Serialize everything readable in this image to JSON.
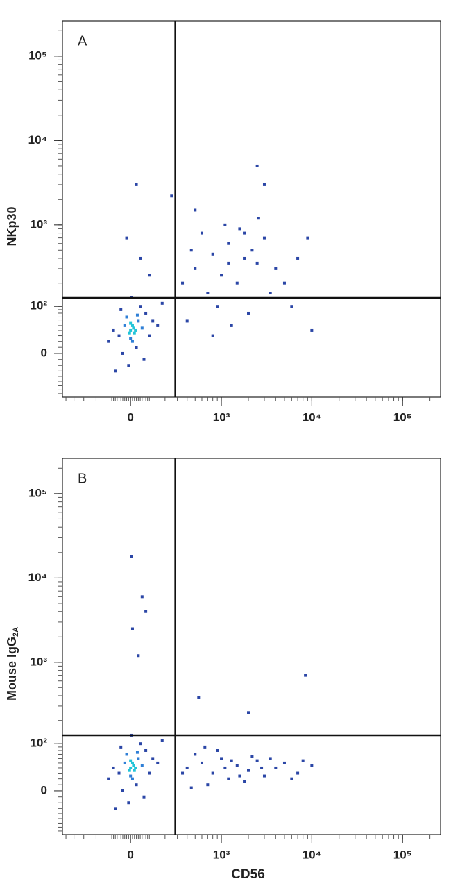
{
  "chart_data": [
    {
      "type": "scatter",
      "annotation": "A",
      "ylabel": "NKp30",
      "color": "#2b46a6",
      "x": [
        0,
        20,
        -30,
        40,
        10,
        -60,
        60,
        -20,
        30,
        80,
        -90,
        100,
        -10,
        50,
        -40,
        120,
        0,
        15,
        -5,
        25,
        -120,
        150,
        5,
        -50,
        70,
        180,
        -80,
        35,
        0,
        10,
        500,
        800,
        1200,
        1800,
        2500,
        3000,
        1000,
        700,
        1500,
        2200,
        4000,
        600,
        900,
        1300,
        2000,
        3500,
        5000,
        7000,
        9000,
        400,
        450,
        1100,
        1600,
        2600,
        800,
        1200,
        350,
        6000,
        10000,
        500,
        3000,
        1800,
        30,
        250,
        2500,
        50,
        -20,
        100
      ],
      "y": [
        40,
        35,
        50,
        60,
        20,
        30,
        45,
        70,
        10,
        80,
        40,
        30,
        -20,
        100,
        0,
        60,
        55,
        45,
        35,
        40,
        20,
        50,
        130,
        90,
        -10,
        110,
        -30,
        75,
        25,
        50,
        300,
        450,
        600,
        400,
        350,
        700,
        250,
        150,
        200,
        500,
        300,
        800,
        100,
        50,
        80,
        150,
        200,
        400,
        700,
        60,
        500,
        1000,
        900,
        1200,
        30,
        350,
        200,
        100,
        40,
        1500,
        3000,
        800,
        3000,
        2200,
        5000,
        400,
        700,
        250
      ],
      "xlim": [
        -550,
        262144
      ],
      "ylim": [
        -90,
        262144
      ],
      "xticks": [
        0,
        {
          "value": 1000,
          "label": "10³"
        },
        {
          "value": 10000,
          "label": "10⁴"
        },
        {
          "value": 100000,
          "label": "10⁵"
        }
      ],
      "yticks": [
        0,
        {
          "value": 100,
          "label": "10²"
        },
        {
          "value": 1000,
          "label": "10³"
        },
        {
          "value": 10000,
          "label": "10⁴"
        },
        {
          "value": 100000,
          "label": "10⁵"
        }
      ],
      "gates": {
        "x": 280,
        "y": 130
      }
    },
    {
      "type": "scatter",
      "annotation": "B",
      "ylabel": "Mouse IgG",
      "ylabel_sub": "2A",
      "xlabel": "CD56",
      "color": "#2b46a6",
      "x": [
        0,
        20,
        -30,
        40,
        10,
        -60,
        60,
        -20,
        30,
        80,
        -90,
        100,
        -10,
        50,
        -40,
        120,
        0,
        15,
        -5,
        25,
        -120,
        150,
        5,
        -50,
        70,
        180,
        -80,
        35,
        0,
        10,
        400,
        600,
        800,
        1000,
        1200,
        1500,
        2000,
        2500,
        3000,
        4000,
        5000,
        7000,
        10000,
        500,
        700,
        900,
        1100,
        1300,
        1800,
        2200,
        350,
        3500,
        6000,
        8000,
        450,
        650,
        1600,
        2800,
        5,
        60,
        10,
        40,
        80,
        8500,
        2000,
        550
      ],
      "y": [
        40,
        35,
        50,
        60,
        20,
        30,
        45,
        70,
        10,
        80,
        40,
        30,
        -20,
        100,
        0,
        60,
        55,
        45,
        35,
        40,
        20,
        50,
        130,
        90,
        -10,
        110,
        -30,
        75,
        25,
        50,
        40,
        50,
        30,
        60,
        20,
        45,
        35,
        55,
        25,
        40,
        50,
        30,
        45,
        70,
        10,
        80,
        40,
        55,
        15,
        65,
        30,
        60,
        20,
        55,
        5,
        90,
        25,
        40,
        18000,
        6000,
        2500,
        1200,
        4000,
        700,
        250,
        380
      ],
      "xlim": [
        -550,
        262144
      ],
      "ylim": [
        -90,
        262144
      ],
      "xticks": [
        0,
        {
          "value": 1000,
          "label": "10³"
        },
        {
          "value": 10000,
          "label": "10⁴"
        },
        {
          "value": 100000,
          "label": "10⁵"
        }
      ],
      "yticks": [
        0,
        {
          "value": 100,
          "label": "10²"
        },
        {
          "value": 1000,
          "label": "10³"
        },
        {
          "value": 10000,
          "label": "10⁴"
        },
        {
          "value": 100000,
          "label": "10⁵"
        }
      ],
      "gates": {
        "x": 280,
        "y": 130
      }
    }
  ]
}
